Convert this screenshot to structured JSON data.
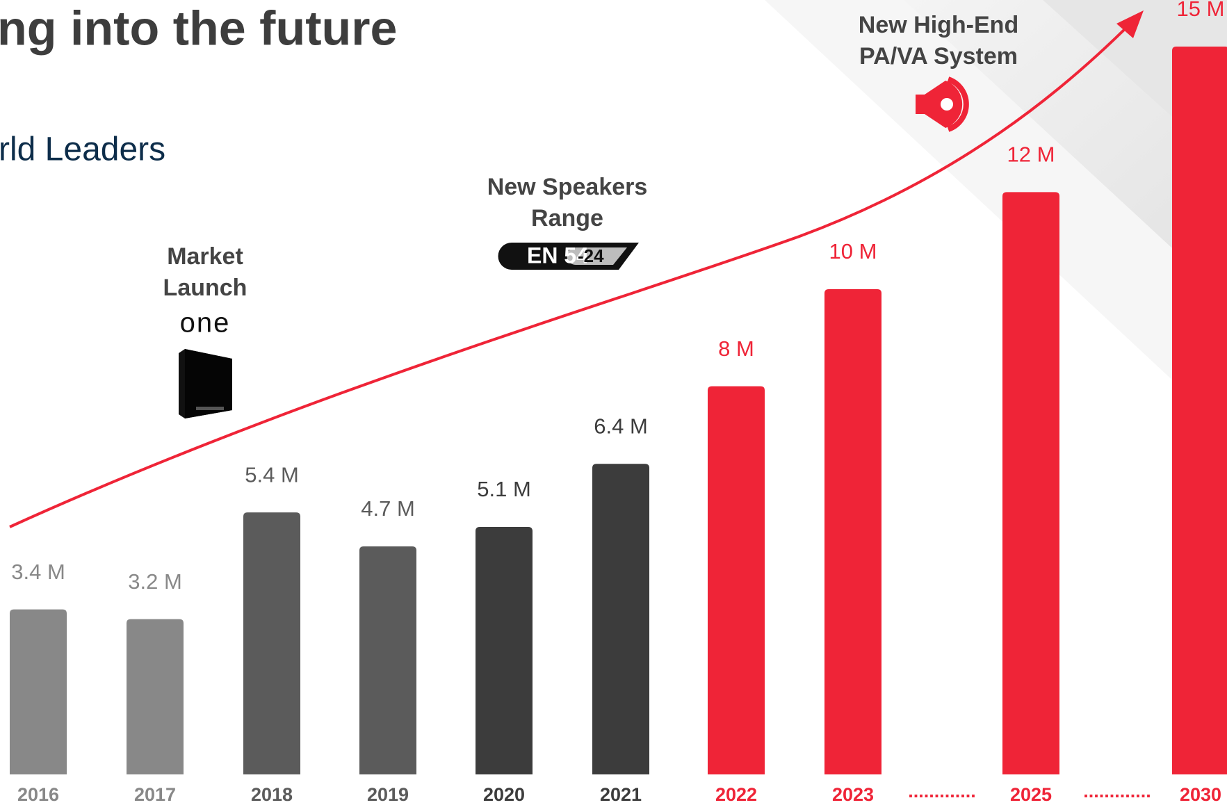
{
  "chart_data": {
    "type": "bar",
    "title": "ng into the future",
    "subtitle": "rld Leaders",
    "categories": [
      "2016",
      "2017",
      "2018",
      "2019",
      "2020",
      "2021",
      "2022",
      "2023",
      ".............",
      "2025",
      ".............",
      "2030"
    ],
    "values": [
      3.4,
      3.2,
      5.4,
      4.7,
      5.1,
      6.4,
      8,
      10,
      null,
      12,
      null,
      15
    ],
    "value_labels": [
      "3.4 M",
      "3.2 M",
      "5.4 M",
      "4.7 M",
      "5.1 M",
      "6.4 M",
      "8 M",
      "10 M",
      null,
      "12 M",
      null,
      "15 M"
    ],
    "colors": [
      "#888888",
      "#888888",
      "#5b5b5b",
      "#5b5b5b",
      "#3c3c3c",
      "#3c3c3c",
      "#ef2437",
      "#ef2437",
      "#ef2437",
      "#ef2437",
      "#ef2437",
      "#ef2437"
    ],
    "annotations": [
      [
        "Market",
        "Launch"
      ],
      [
        "New Speakers",
        "Range"
      ],
      [
        "New High-End",
        "PA/VA System"
      ]
    ],
    "logo_text": "one",
    "badge_text": [
      "EN 54",
      "-24"
    ]
  }
}
